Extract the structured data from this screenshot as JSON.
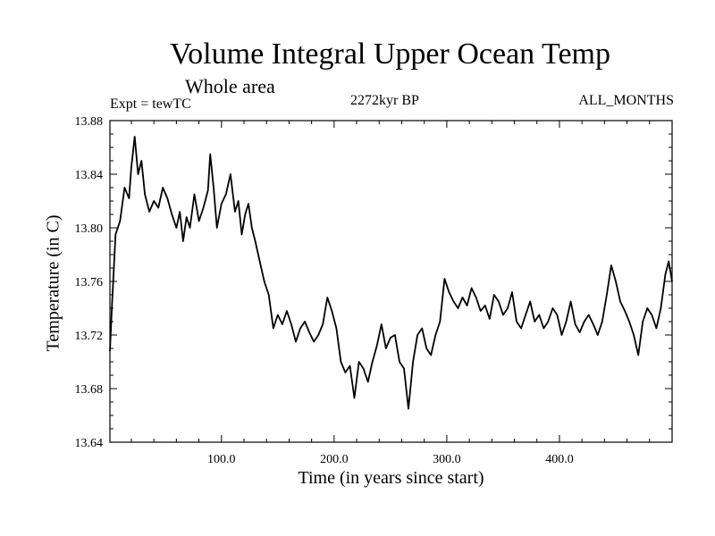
{
  "chart_data": {
    "type": "line",
    "title": "Volume Integral Upper Ocean Temp",
    "subtitle": "Whole area",
    "left_note": "Expt = tewTC",
    "center_note": "2272kyr BP",
    "right_note": "ALL_MONTHS",
    "xlabel": "Time (in years since start)",
    "ylabel": "Temperature (in C)",
    "xlim": [
      1,
      500
    ],
    "ylim": [
      13.64,
      13.88
    ],
    "x_ticks": [
      100,
      200,
      300,
      400
    ],
    "x_tick_labels": [
      "100.0",
      "200.0",
      "300.0",
      "400.0"
    ],
    "y_ticks": [
      13.64,
      13.68,
      13.72,
      13.76,
      13.8,
      13.84,
      13.88
    ],
    "y_tick_labels": [
      "13.64",
      "13.68",
      "13.72",
      "13.76",
      "13.80",
      "13.84",
      "13.88"
    ],
    "grid": false,
    "series": [
      {
        "name": "Volume Integral Upper Ocean Temp",
        "color": "#000000",
        "x": [
          1,
          3,
          6,
          10,
          14,
          18,
          20,
          23,
          26,
          29,
          32,
          36,
          40,
          44,
          48,
          52,
          56,
          60,
          63,
          66,
          69,
          72,
          76,
          80,
          84,
          88,
          90,
          93,
          96,
          100,
          104,
          108,
          112,
          115,
          118,
          121,
          124,
          127,
          130,
          134,
          138,
          142,
          146,
          150,
          154,
          158,
          162,
          166,
          170,
          174,
          178,
          182,
          186,
          190,
          194,
          198,
          202,
          206,
          210,
          214,
          218,
          222,
          226,
          230,
          234,
          238,
          242,
          246,
          250,
          254,
          258,
          262,
          266,
          270,
          274,
          278,
          282,
          286,
          290,
          294,
          298,
          302,
          306,
          310,
          314,
          318,
          322,
          326,
          330,
          334,
          338,
          342,
          346,
          350,
          354,
          358,
          362,
          366,
          370,
          374,
          378,
          382,
          386,
          390,
          394,
          398,
          402,
          406,
          410,
          414,
          418,
          422,
          426,
          430,
          434,
          438,
          442,
          446,
          450,
          454,
          458,
          462,
          466,
          470,
          474,
          478,
          482,
          486,
          490,
          494,
          497,
          500
        ],
        "values": [
          13.708,
          13.745,
          13.795,
          13.805,
          13.83,
          13.822,
          13.845,
          13.868,
          13.84,
          13.85,
          13.825,
          13.812,
          13.82,
          13.815,
          13.83,
          13.822,
          13.81,
          13.8,
          13.812,
          13.79,
          13.808,
          13.8,
          13.825,
          13.805,
          13.815,
          13.828,
          13.855,
          13.83,
          13.8,
          13.818,
          13.825,
          13.84,
          13.812,
          13.82,
          13.795,
          13.81,
          13.818,
          13.8,
          13.79,
          13.775,
          13.76,
          13.75,
          13.725,
          13.735,
          13.728,
          13.738,
          13.728,
          13.715,
          13.725,
          13.73,
          13.722,
          13.715,
          13.72,
          13.728,
          13.748,
          13.738,
          13.725,
          13.7,
          13.692,
          13.697,
          13.673,
          13.7,
          13.695,
          13.685,
          13.7,
          13.712,
          13.728,
          13.71,
          13.718,
          13.72,
          13.7,
          13.695,
          13.665,
          13.7,
          13.72,
          13.725,
          13.71,
          13.705,
          13.72,
          13.73,
          13.762,
          13.752,
          13.745,
          13.74,
          13.748,
          13.742,
          13.755,
          13.748,
          13.738,
          13.742,
          13.732,
          13.75,
          13.745,
          13.735,
          13.74,
          13.752,
          13.73,
          13.725,
          13.735,
          13.745,
          13.73,
          13.735,
          13.725,
          13.73,
          13.74,
          13.735,
          13.72,
          13.73,
          13.745,
          13.728,
          13.722,
          13.73,
          13.735,
          13.728,
          13.72,
          13.73,
          13.75,
          13.772,
          13.76,
          13.745,
          13.738,
          13.73,
          13.72,
          13.705,
          13.73,
          13.74,
          13.735,
          13.725,
          13.74,
          13.765,
          13.775,
          13.76
        ]
      }
    ]
  }
}
